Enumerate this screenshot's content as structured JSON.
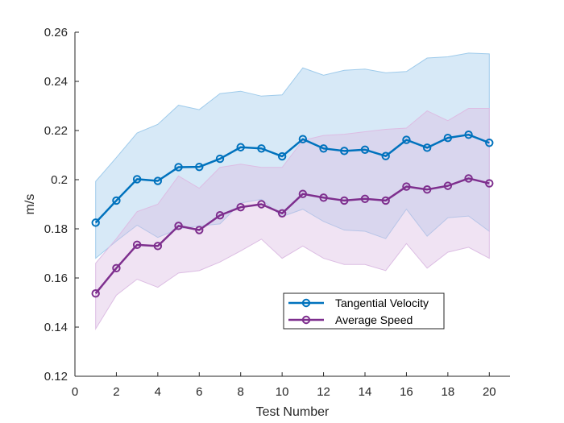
{
  "chart_data": {
    "type": "line",
    "xlabel": "Test Number",
    "ylabel": "m/s",
    "xlim": [
      0,
      21
    ],
    "ylim": [
      0.12,
      0.26
    ],
    "xticks": [
      0,
      2,
      4,
      6,
      8,
      10,
      12,
      14,
      16,
      18,
      20
    ],
    "yticks": [
      0.12,
      0.14,
      0.16,
      0.18,
      0.2,
      0.22,
      0.24,
      0.26
    ],
    "ytick_labels": [
      "0.12",
      "0.14",
      "0.16",
      "0.18",
      "0.2",
      "0.22",
      "0.24",
      "0.26"
    ],
    "grid": false,
    "legend_position": "lower-right",
    "x": [
      1,
      2,
      3,
      4,
      5,
      6,
      7,
      8,
      9,
      10,
      11,
      12,
      13,
      14,
      15,
      16,
      17,
      18,
      19,
      20
    ],
    "series": [
      {
        "name": "Tangential Velocity",
        "color": "#0072BD",
        "band_color": "#9fcbeb",
        "marker": "circle",
        "values": [
          0.1825,
          0.1915,
          0.2002,
          0.1995,
          0.2051,
          0.2052,
          0.2085,
          0.2132,
          0.2127,
          0.2095,
          0.2165,
          0.2127,
          0.2117,
          0.2122,
          0.2096,
          0.2162,
          0.213,
          0.217,
          0.2183,
          0.215
        ],
        "upper": [
          0.1993,
          0.209,
          0.219,
          0.2225,
          0.2303,
          0.2285,
          0.235,
          0.236,
          0.234,
          0.2345,
          0.2455,
          0.2425,
          0.2445,
          0.245,
          0.2435,
          0.244,
          0.2495,
          0.25,
          0.2515,
          0.2512
        ],
        "lower": [
          0.168,
          0.175,
          0.1815,
          0.1765,
          0.18,
          0.1812,
          0.182,
          0.1905,
          0.192,
          0.185,
          0.188,
          0.183,
          0.1795,
          0.179,
          0.176,
          0.188,
          0.177,
          0.1845,
          0.1852,
          0.179
        ]
      },
      {
        "name": "Average Speed",
        "color": "#7E2F8E",
        "band_color": "#dcbde3",
        "marker": "circle",
        "values": [
          0.1537,
          0.164,
          0.1735,
          0.173,
          0.1812,
          0.1795,
          0.1855,
          0.1888,
          0.19,
          0.1863,
          0.1942,
          0.1927,
          0.1915,
          0.1922,
          0.1915,
          0.1972,
          0.196,
          0.1975,
          0.2005,
          0.1985
        ],
        "upper": [
          0.166,
          0.176,
          0.187,
          0.19,
          0.2015,
          0.1965,
          0.205,
          0.2063,
          0.205,
          0.205,
          0.216,
          0.218,
          0.2185,
          0.2195,
          0.2205,
          0.221,
          0.228,
          0.224,
          0.229,
          0.229
        ],
        "lower": [
          0.1393,
          0.153,
          0.1595,
          0.1562,
          0.162,
          0.163,
          0.1665,
          0.171,
          0.1758,
          0.168,
          0.173,
          0.168,
          0.1655,
          0.1655,
          0.163,
          0.174,
          0.164,
          0.1705,
          0.1725,
          0.168
        ]
      }
    ]
  }
}
